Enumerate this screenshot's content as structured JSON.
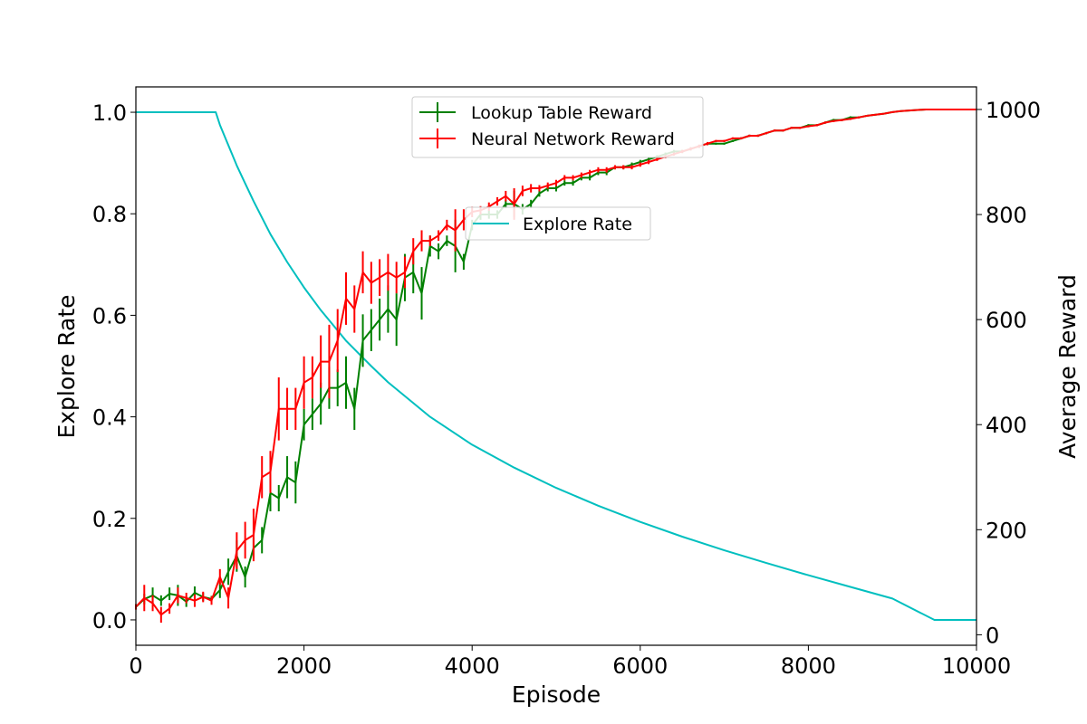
{
  "chart_data": {
    "type": "line",
    "xlabel": "Episode",
    "ylabel_left": "Explore Rate",
    "ylabel_right": "Average Reward",
    "xlim": [
      0,
      10000
    ],
    "ylim_left": [
      -0.05,
      1.05
    ],
    "ylim_right": [
      -20,
      1043
    ],
    "x_ticks": [
      0,
      2000,
      4000,
      6000,
      8000,
      10000
    ],
    "y_left_ticks": [
      0.0,
      0.2,
      0.4,
      0.6,
      0.8,
      1.0
    ],
    "y_right_ticks": [
      0,
      200,
      400,
      600,
      800,
      1000
    ],
    "grid": false,
    "colors": {
      "explore": "#00bfbf",
      "lookup": "#008000",
      "neural": "#ff0000"
    },
    "legend_main": {
      "placement": "upper-center",
      "entries": [
        "Lookup Table Reward",
        "Neural Network Reward"
      ]
    },
    "legend_explore": {
      "placement": "center-right",
      "entries": [
        "Explore Rate"
      ]
    },
    "series": [
      {
        "name": "Explore Rate",
        "axis": "left",
        "style": "line",
        "x": [
          0,
          950,
          1000,
          1100,
          1200,
          1300,
          1400,
          1600,
          1800,
          2000,
          2200,
          2500,
          2800,
          3000,
          3500,
          4000,
          4500,
          5000,
          5500,
          6000,
          6500,
          7000,
          7500,
          8000,
          8500,
          9000,
          9500,
          10000
        ],
        "y": [
          1.0,
          1.0,
          0.975,
          0.935,
          0.895,
          0.86,
          0.825,
          0.76,
          0.705,
          0.655,
          0.61,
          0.55,
          0.5,
          0.468,
          0.4,
          0.345,
          0.3,
          0.26,
          0.225,
          0.193,
          0.164,
          0.137,
          0.112,
          0.088,
          0.065,
          0.042,
          0.0,
          0.0
        ]
      },
      {
        "name": "Lookup Table Reward",
        "axis": "right",
        "style": "errorbar",
        "x": [
          0,
          100,
          200,
          300,
          400,
          500,
          600,
          700,
          800,
          900,
          1000,
          1100,
          1200,
          1300,
          1400,
          1500,
          1600,
          1700,
          1800,
          1900,
          2000,
          2100,
          2200,
          2300,
          2400,
          2500,
          2600,
          2700,
          2800,
          2900,
          3000,
          3100,
          3200,
          3300,
          3400,
          3500,
          3600,
          3700,
          3800,
          3900,
          4000,
          4100,
          4200,
          4300,
          4400,
          4500,
          4600,
          4700,
          4800,
          4900,
          5000,
          5100,
          5200,
          5300,
          5400,
          5500,
          5600,
          5700,
          5800,
          5900,
          6000,
          6100,
          6200,
          6300,
          6400,
          6500,
          6600,
          6700,
          6800,
          6900,
          7000,
          7100,
          7200,
          7300,
          7400,
          7500,
          7600,
          7700,
          7800,
          7900,
          8000,
          8100,
          8200,
          8300,
          8400,
          8500,
          8600,
          8700,
          8800,
          8900,
          9000,
          9100,
          9200,
          9300,
          9400,
          9500,
          9600,
          9700,
          9800,
          9900,
          10000
        ],
        "y": [
          53,
          68,
          75,
          65,
          78,
          75,
          63,
          80,
          72,
          68,
          85,
          120,
          150,
          110,
          165,
          180,
          270,
          260,
          300,
          290,
          400,
          420,
          440,
          470,
          470,
          480,
          430,
          560,
          580,
          600,
          620,
          600,
          680,
          690,
          650,
          740,
          730,
          750,
          740,
          710,
          780,
          800,
          800,
          800,
          820,
          820,
          810,
          820,
          840,
          850,
          850,
          860,
          860,
          870,
          870,
          880,
          880,
          890,
          890,
          895,
          900,
          905,
          910,
          915,
          920,
          920,
          925,
          930,
          935,
          935,
          935,
          940,
          945,
          950,
          950,
          955,
          960,
          960,
          965,
          965,
          970,
          970,
          975,
          980,
          980,
          985,
          985,
          988,
          990,
          992,
          995,
          997,
          998,
          999,
          1000,
          1000,
          1000,
          1000,
          1000,
          1000,
          1000
        ],
        "err": [
          5,
          10,
          15,
          10,
          12,
          20,
          10,
          12,
          8,
          6,
          15,
          25,
          30,
          20,
          20,
          25,
          35,
          25,
          40,
          40,
          30,
          30,
          40,
          40,
          35,
          50,
          40,
          50,
          40,
          40,
          45,
          50,
          45,
          40,
          50,
          20,
          15,
          10,
          50,
          15,
          10,
          10,
          8,
          8,
          8,
          25,
          10,
          8,
          6,
          6,
          6,
          5,
          5,
          5,
          5,
          5,
          5,
          4,
          4,
          4,
          4,
          4,
          3,
          3,
          3,
          3,
          3,
          3,
          3,
          2,
          2,
          2,
          2,
          2,
          2,
          2,
          2,
          2,
          2,
          2,
          2,
          2,
          2,
          2,
          2,
          2,
          2,
          1,
          1,
          1,
          1,
          1,
          1,
          1,
          1,
          0,
          0,
          0,
          0,
          0,
          0
        ]
      },
      {
        "name": "Neural Network Reward",
        "axis": "right",
        "style": "errorbar",
        "x": [
          0,
          100,
          200,
          300,
          400,
          500,
          600,
          700,
          800,
          900,
          1000,
          1100,
          1200,
          1300,
          1400,
          1500,
          1600,
          1700,
          1800,
          1900,
          2000,
          2100,
          2200,
          2300,
          2400,
          2500,
          2600,
          2700,
          2800,
          2900,
          3000,
          3100,
          3200,
          3300,
          3400,
          3500,
          3600,
          3700,
          3800,
          3900,
          4000,
          4100,
          4200,
          4300,
          4400,
          4500,
          4600,
          4700,
          4800,
          4900,
          5000,
          5100,
          5200,
          5300,
          5400,
          5500,
          5600,
          5700,
          5800,
          5900,
          6000,
          6100,
          6200,
          6300,
          6400,
          6500,
          6600,
          6700,
          6800,
          6900,
          7000,
          7100,
          7200,
          7300,
          7400,
          7500,
          7600,
          7700,
          7800,
          7900,
          8000,
          8100,
          8200,
          8300,
          8400,
          8500,
          8600,
          8700,
          8800,
          8900,
          9000,
          9100,
          9200,
          9300,
          9400,
          9500,
          9600,
          9700,
          9800,
          9900,
          10000
        ],
        "y": [
          53,
          70,
          60,
          38,
          50,
          75,
          70,
          65,
          72,
          65,
          110,
          70,
          160,
          180,
          190,
          300,
          310,
          430,
          430,
          430,
          480,
          490,
          520,
          520,
          560,
          640,
          620,
          690,
          670,
          680,
          690,
          680,
          690,
          730,
          750,
          750,
          760,
          780,
          770,
          790,
          805,
          808,
          815,
          825,
          835,
          820,
          845,
          850,
          850,
          855,
          860,
          870,
          870,
          875,
          880,
          885,
          885,
          890,
          890,
          890,
          895,
          900,
          905,
          910,
          915,
          920,
          925,
          930,
          935,
          940,
          940,
          945,
          945,
          950,
          950,
          955,
          960,
          960,
          965,
          965,
          968,
          970,
          975,
          978,
          980,
          982,
          985,
          988,
          990,
          992,
          995,
          997,
          998,
          999,
          1000,
          1000,
          1000,
          1000,
          1000,
          1000,
          1000
        ],
        "err": [
          5,
          25,
          15,
          15,
          10,
          15,
          10,
          12,
          10,
          8,
          15,
          20,
          35,
          35,
          50,
          40,
          40,
          60,
          40,
          40,
          50,
          40,
          50,
          70,
          60,
          50,
          45,
          40,
          40,
          35,
          35,
          30,
          30,
          25,
          20,
          10,
          10,
          10,
          40,
          20,
          10,
          8,
          8,
          8,
          10,
          30,
          10,
          8,
          6,
          6,
          6,
          5,
          5,
          5,
          5,
          5,
          5,
          4,
          4,
          4,
          4,
          4,
          3,
          3,
          3,
          3,
          3,
          3,
          3,
          2,
          2,
          2,
          2,
          2,
          2,
          2,
          2,
          2,
          2,
          2,
          2,
          2,
          2,
          2,
          2,
          2,
          2,
          1,
          1,
          1,
          1,
          1,
          1,
          1,
          1,
          0,
          0,
          0,
          0,
          0,
          0
        ]
      }
    ]
  }
}
